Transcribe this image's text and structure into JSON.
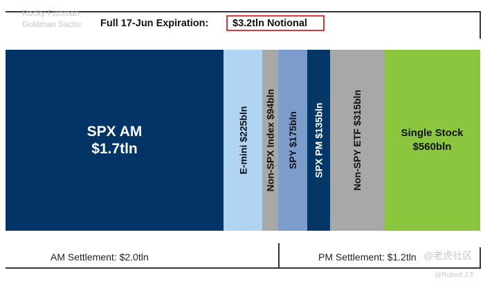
{
  "chart_data": {
    "type": "bar",
    "orientation": "stacked-horizontal",
    "title": "Full 17-Jun Expiration:",
    "title_highlight": "$3.2tln Notional",
    "watermark": [
      "Rocky Fishman",
      "Goldman Sachs",
      "@老虎社区",
      "@Robert J.T"
    ],
    "segments": [
      {
        "label": "SPX AM\n$1.7tln",
        "name": "SPX AM",
        "value_bln": 1700,
        "color": "#033466",
        "text_color": "#ffffff"
      },
      {
        "label": "E-mini $225bln",
        "name": "E-mini",
        "value_bln": 225,
        "color": "#b0d4f1",
        "text_color": "#111111"
      },
      {
        "label": "Non-SPX Index $94bln",
        "name": "Non-SPX Index",
        "value_bln": 94,
        "color": "#a8a8a8",
        "text_color": "#111111"
      },
      {
        "label": "SPY $175bln",
        "name": "SPY",
        "value_bln": 175,
        "color": "#7c9ccc",
        "text_color": "#111111"
      },
      {
        "label": "SPX PM $135bln",
        "name": "SPX PM",
        "value_bln": 135,
        "color": "#043766",
        "text_color": "#ffffff"
      },
      {
        "label": "Non-SPY ETF $315bln",
        "name": "Non-SPY ETF",
        "value_bln": 315,
        "color": "#a8a8a8",
        "text_color": "#111111"
      },
      {
        "label": "Single Stock\n$560bln",
        "name": "Single Stock",
        "value_bln": 560,
        "color": "#8cc63f",
        "text_color": "#111111"
      }
    ],
    "groups": [
      {
        "label": "AM Settlement: $2.0tln",
        "value_tln": 2.0
      },
      {
        "label": "PM Settlement: $1.2tln",
        "value_tln": 1.2
      }
    ]
  }
}
